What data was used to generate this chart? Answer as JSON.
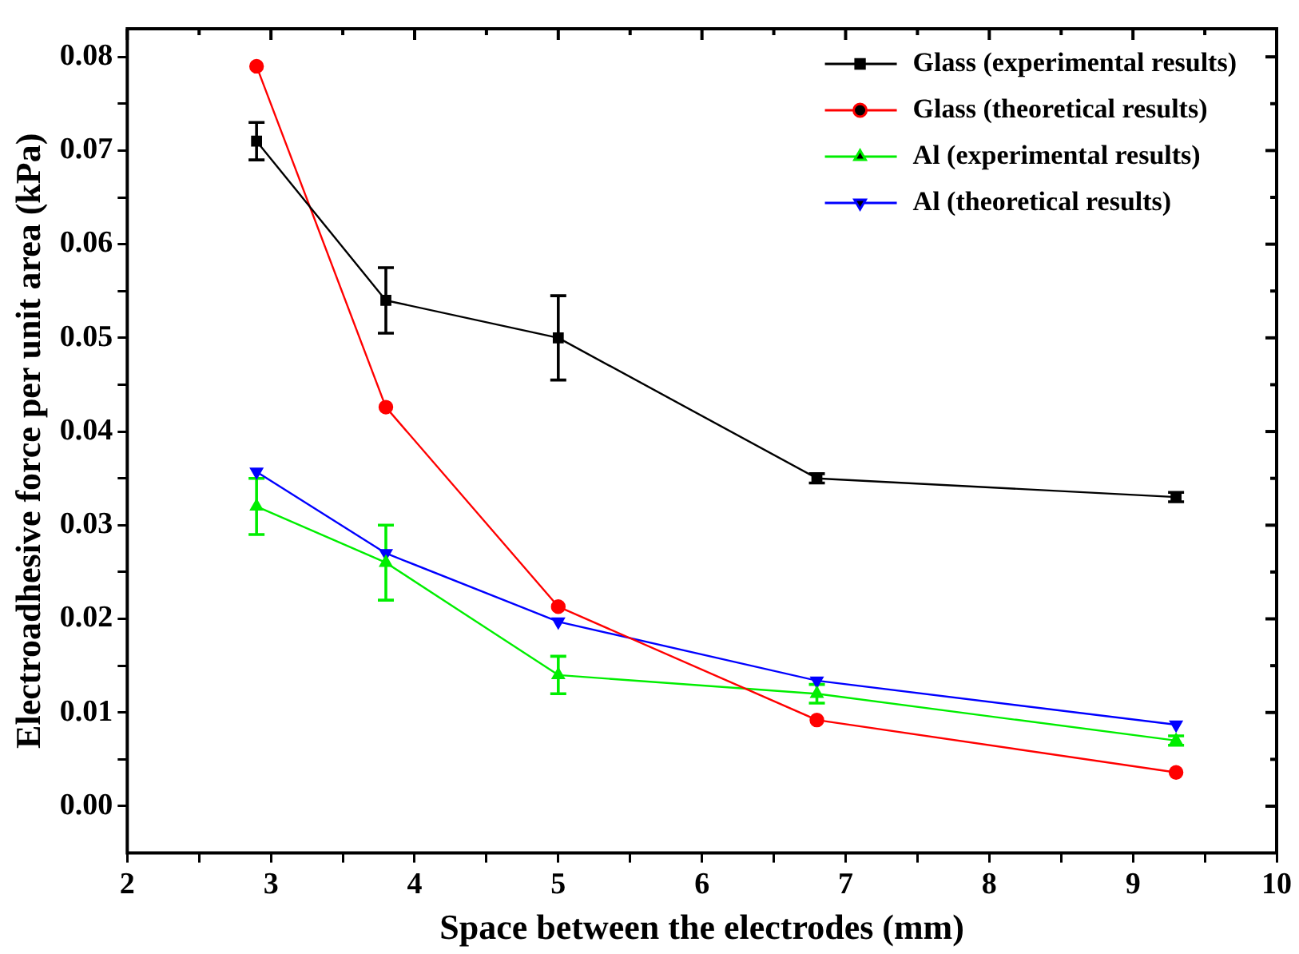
{
  "chart_data": {
    "type": "line",
    "xlabel": "Space between the electrodes (mm)",
    "ylabel": "Electroadhesive force per unit area (kPa)",
    "x": [
      2.9,
      3.8,
      5,
      6.8,
      9.3
    ],
    "xlim": [
      2,
      10
    ],
    "xticks": [
      2,
      {
        "value": 2.5,
        "label": null
      },
      3,
      {
        "value": 3.5,
        "label": null
      },
      4,
      {
        "value": 4.5,
        "label": null
      },
      5,
      {
        "value": 5.5,
        "label": null
      },
      6,
      {
        "value": 6.5,
        "label": null
      },
      7,
      {
        "value": 7.5,
        "label": null
      },
      8,
      {
        "value": 8.5,
        "label": null
      },
      9,
      {
        "value": 9.5,
        "label": null
      },
      10
    ],
    "ylim": [
      -0.005,
      0.083
    ],
    "yticks": [
      {
        "value": 0,
        "label": "0.00"
      },
      {
        "value": 0.005,
        "label": null
      },
      0.01,
      {
        "value": 0.015,
        "label": null
      },
      0.02,
      {
        "value": 0.025,
        "label": null
      },
      0.03,
      {
        "value": 0.035,
        "label": null
      },
      0.04,
      {
        "value": 0.045,
        "label": null
      },
      0.05,
      {
        "value": 0.055,
        "label": null
      },
      0.06,
      {
        "value": 0.065,
        "label": null
      },
      0.07,
      {
        "value": 0.075,
        "label": null
      },
      0.08
    ],
    "legend": "top right",
    "grid": false,
    "series": [
      {
        "name": "Glass (experimental results)",
        "color": "#000000",
        "marker": "square",
        "values": [
          0.071,
          0.054,
          0.05,
          0.035,
          0.033
        ],
        "errors": [
          0.002,
          0.0035,
          0.0045,
          0.0005,
          0.0005
        ]
      },
      {
        "name": "Glass (theoretical results)",
        "color": "#ff0000",
        "marker": "circle",
        "values": [
          0.079,
          0.0426,
          0.0213,
          0.0092,
          0.0036
        ]
      },
      {
        "name": "Al (experimental results)",
        "color": "#00ee00",
        "marker": "triangle",
        "values": [
          0.032,
          0.026,
          0.014,
          0.012,
          0.007
        ],
        "errors": [
          0.003,
          0.004,
          0.002,
          0.001,
          0.0005
        ]
      },
      {
        "name": "Al (theoretical results)",
        "color": "#0000ff",
        "marker": "triangle-down",
        "values": [
          0.0357,
          0.027,
          0.0197,
          0.0134,
          0.0087
        ]
      }
    ]
  }
}
